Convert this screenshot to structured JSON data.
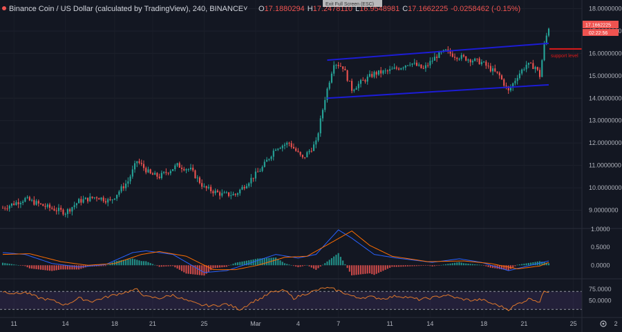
{
  "header": {
    "symbol": "Binance Coin / US Dollar (calculated by TradingView), 240, BINANCE",
    "open_label": "O",
    "open": "17.1880294",
    "high_label": "H",
    "high": "17.2478110",
    "low_label": "L",
    "low": "16.9548981",
    "close_label": "C",
    "close": "17.1662225",
    "change": "-0.0258462 (-0.15%)",
    "exit_fullscreen": "Exit Full Screen (ESC)"
  },
  "price_badge": {
    "value": "17.1662225",
    "timer": "02:22:56"
  },
  "annotation": {
    "support_label": "support level",
    "support_value": 16.2
  },
  "colors": {
    "background": "#131722",
    "up": "#26a69a",
    "down": "#ef5350",
    "channel": "#1c1cd6",
    "macd": "#2962ff",
    "signal": "#ff6d00",
    "rsi": "#e0782b",
    "support": "#e01b1b"
  },
  "chart_data": [
    {
      "type": "candlestick",
      "name": "price",
      "y_ticks": [
        "18.0000000",
        "17.0000000",
        "16.0000000",
        "15.0000000",
        "14.0000000",
        "13.0000000",
        "12.0000000",
        "11.0000000",
        "10.0000000",
        "9.0000000"
      ],
      "ylim": [
        8.4,
        18.2
      ],
      "x_tick_labels": [
        "11",
        "14",
        "18",
        "21",
        "25",
        "Mar",
        "4",
        "7",
        "11",
        "14",
        "18",
        "21",
        "25",
        "2"
      ],
      "anchors": [
        [
          0,
          9.1
        ],
        [
          10,
          9.5
        ],
        [
          18,
          9.2
        ],
        [
          28,
          8.9
        ],
        [
          34,
          9.4
        ],
        [
          42,
          9.6
        ],
        [
          48,
          9.4
        ],
        [
          56,
          10.3
        ],
        [
          60,
          11.2
        ],
        [
          66,
          10.6
        ],
        [
          70,
          10.5
        ],
        [
          78,
          11.0
        ],
        [
          84,
          10.8
        ],
        [
          90,
          10.0
        ],
        [
          98,
          9.7
        ],
        [
          104,
          9.7
        ],
        [
          110,
          10.3
        ],
        [
          116,
          10.9
        ],
        [
          122,
          11.8
        ],
        [
          128,
          12.0
        ],
        [
          134,
          11.3
        ],
        [
          140,
          12.0
        ],
        [
          144,
          14.0
        ],
        [
          148,
          15.6
        ],
        [
          152,
          15.4
        ],
        [
          156,
          14.4
        ],
        [
          160,
          14.7
        ],
        [
          166,
          15.1
        ],
        [
          172,
          15.2
        ],
        [
          178,
          15.4
        ],
        [
          182,
          15.6
        ],
        [
          188,
          15.3
        ],
        [
          194,
          15.9
        ],
        [
          198,
          16.1
        ],
        [
          202,
          15.9
        ],
        [
          206,
          15.8
        ],
        [
          210,
          15.7
        ],
        [
          214,
          15.6
        ],
        [
          218,
          15.3
        ],
        [
          222,
          15.0
        ],
        [
          226,
          14.3
        ],
        [
          230,
          15.0
        ],
        [
          234,
          15.5
        ],
        [
          238,
          15.4
        ],
        [
          240,
          15.0
        ],
        [
          242,
          16.4
        ],
        [
          244,
          17.17
        ]
      ],
      "count": 245
    },
    {
      "type": "line+histogram",
      "name": "MACD",
      "y_ticks": [
        "1.0000",
        "0.5000",
        "0.0000"
      ],
      "ylim": [
        -0.3,
        1.0
      ],
      "macd_anchors": [
        [
          0,
          0.35
        ],
        [
          10,
          0.3
        ],
        [
          22,
          0.05
        ],
        [
          34,
          -0.05
        ],
        [
          46,
          0.02
        ],
        [
          58,
          0.35
        ],
        [
          64,
          0.4
        ],
        [
          76,
          0.3
        ],
        [
          90,
          -0.2
        ],
        [
          100,
          -0.15
        ],
        [
          110,
          0.05
        ],
        [
          122,
          0.3
        ],
        [
          132,
          0.2
        ],
        [
          140,
          0.3
        ],
        [
          150,
          0.98
        ],
        [
          156,
          0.75
        ],
        [
          166,
          0.3
        ],
        [
          176,
          0.2
        ],
        [
          192,
          0.08
        ],
        [
          204,
          0.18
        ],
        [
          214,
          0.08
        ],
        [
          226,
          -0.15
        ],
        [
          236,
          0.0
        ],
        [
          244,
          0.12
        ]
      ],
      "signal_anchors": [
        [
          0,
          0.3
        ],
        [
          12,
          0.32
        ],
        [
          26,
          0.1
        ],
        [
          38,
          0.0
        ],
        [
          50,
          0.05
        ],
        [
          62,
          0.3
        ],
        [
          70,
          0.38
        ],
        [
          82,
          0.25
        ],
        [
          94,
          -0.12
        ],
        [
          104,
          -0.12
        ],
        [
          114,
          0.0
        ],
        [
          126,
          0.22
        ],
        [
          136,
          0.25
        ],
        [
          146,
          0.6
        ],
        [
          156,
          0.95
        ],
        [
          164,
          0.55
        ],
        [
          174,
          0.25
        ],
        [
          190,
          0.1
        ],
        [
          206,
          0.12
        ],
        [
          218,
          0.05
        ],
        [
          230,
          -0.1
        ],
        [
          240,
          -0.02
        ],
        [
          244,
          0.08
        ]
      ]
    },
    {
      "type": "line",
      "name": "RSI",
      "y_ticks": [
        "75.0000",
        "50.0000"
      ],
      "ylim": [
        15,
        95
      ],
      "band": [
        30,
        70
      ],
      "anchors": [
        [
          0,
          70
        ],
        [
          6,
          65
        ],
        [
          10,
          68
        ],
        [
          16,
          56
        ],
        [
          22,
          50
        ],
        [
          28,
          40
        ],
        [
          34,
          55
        ],
        [
          40,
          48
        ],
        [
          48,
          60
        ],
        [
          56,
          70
        ],
        [
          60,
          74
        ],
        [
          64,
          58
        ],
        [
          70,
          55
        ],
        [
          76,
          62
        ],
        [
          82,
          50
        ],
        [
          88,
          40
        ],
        [
          94,
          38
        ],
        [
          100,
          42
        ],
        [
          106,
          30
        ],
        [
          112,
          48
        ],
        [
          116,
          56
        ],
        [
          120,
          68
        ],
        [
          126,
          72
        ],
        [
          130,
          55
        ],
        [
          136,
          66
        ],
        [
          140,
          72
        ],
        [
          144,
          78
        ],
        [
          148,
          75
        ],
        [
          152,
          68
        ],
        [
          158,
          56
        ],
        [
          164,
          58
        ],
        [
          170,
          54
        ],
        [
          176,
          60
        ],
        [
          180,
          58
        ],
        [
          186,
          52
        ],
        [
          192,
          56
        ],
        [
          198,
          62
        ],
        [
          204,
          54
        ],
        [
          210,
          50
        ],
        [
          214,
          52
        ],
        [
          218,
          44
        ],
        [
          222,
          38
        ],
        [
          226,
          30
        ],
        [
          230,
          42
        ],
        [
          236,
          55
        ],
        [
          240,
          46
        ],
        [
          242,
          72
        ],
        [
          244,
          70
        ]
      ]
    }
  ]
}
